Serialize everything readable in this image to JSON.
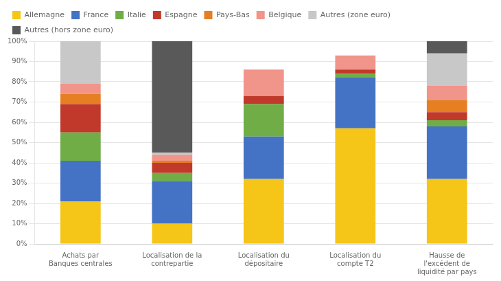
{
  "chart_data": {
    "type": "bar",
    "stacked": true,
    "categories": [
      "Achats par\nBanques centrales",
      "Localisation de la\ncontrepartie",
      "Localisation du\ndépositaire",
      "Localisation du\ncompte T2",
      "Hausse de\nl'excédent de\nliquidité par pays"
    ],
    "series": [
      {
        "name": "Allemagne",
        "color": "#F5C518",
        "values": [
          21,
          10,
          32,
          57,
          32
        ]
      },
      {
        "name": "France",
        "color": "#4472C4",
        "values": [
          20,
          21,
          21,
          25,
          26
        ]
      },
      {
        "name": "Italie",
        "color": "#70AD47",
        "values": [
          14,
          4,
          16,
          2,
          3
        ]
      },
      {
        "name": "Espagne",
        "color": "#C0392B",
        "values": [
          14,
          5,
          4,
          2,
          4
        ]
      },
      {
        "name": "Pays-Bas",
        "color": "#E67E22",
        "values": [
          5,
          1,
          0,
          0,
          6
        ]
      },
      {
        "name": "Belgique",
        "color": "#F1948A",
        "values": [
          5,
          3,
          13,
          7,
          7
        ]
      },
      {
        "name": "Autres (zone euro)",
        "color": "#C8C8C8",
        "values": [
          21,
          1,
          0,
          0,
          16
        ]
      },
      {
        "name": "Autres (hors zone euro)",
        "color": "#595959",
        "values": [
          0,
          55,
          0,
          0,
          6
        ]
      }
    ],
    "ylim": [
      0,
      100
    ],
    "yticks": [
      {
        "value": 0,
        "label": "0%"
      },
      {
        "value": 10,
        "label": "10%"
      },
      {
        "value": 20,
        "label": "20%"
      },
      {
        "value": 30,
        "label": "30%"
      },
      {
        "value": 40,
        "label": "40%"
      },
      {
        "value": 50,
        "label": "50%"
      },
      {
        "value": 60,
        "label": "60%"
      },
      {
        "value": 70,
        "label": "70%"
      },
      {
        "value": 80,
        "label": "80%"
      },
      {
        "value": 90,
        "label": "90%"
      },
      {
        "value": 100,
        "label": "100%"
      }
    ],
    "grid": true,
    "legend": "upper left"
  }
}
